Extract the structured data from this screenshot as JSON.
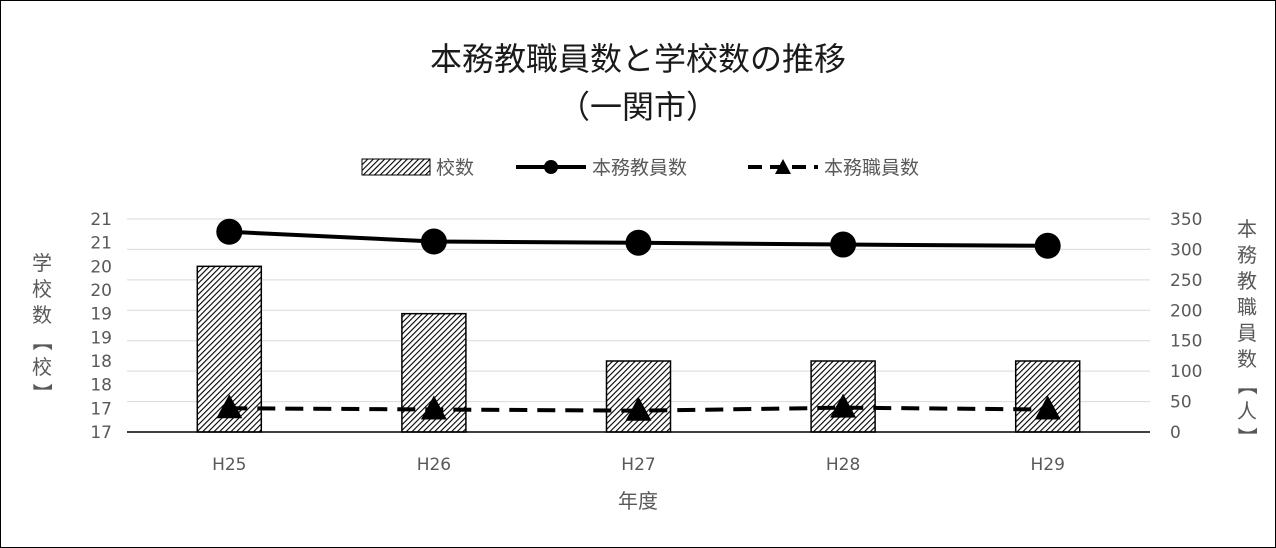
{
  "chart_data": {
    "type": "bar",
    "title": "本務教職員数と学校数の推移",
    "subtitle": "（一関市）",
    "categories": [
      "H25",
      "H26",
      "H27",
      "H28",
      "H29"
    ],
    "xlabel": "年度",
    "ylabel_left": "学校数【校】",
    "ylabel_right": "本務教職員数【人】",
    "left_axis": {
      "min": 16.5,
      "max": 21.0,
      "tick_values": [
        16.5,
        17,
        17.5,
        18,
        18.5,
        19,
        19.5,
        20,
        20.5,
        21
      ],
      "tick_labels": [
        "17",
        "17",
        "18",
        "18",
        "19",
        "19",
        "20",
        "20",
        "21",
        "21"
      ]
    },
    "right_axis": {
      "min": 0,
      "max": 350,
      "ticks": [
        0,
        50,
        100,
        150,
        200,
        250,
        300,
        350
      ]
    },
    "grid": true,
    "legend_position": "top",
    "series": [
      {
        "name": "校数",
        "type": "bar",
        "axis": "left",
        "values": [
          20,
          19,
          18,
          18,
          18
        ],
        "pattern": "diagonal-hatch"
      },
      {
        "name": "本務教員数",
        "type": "line",
        "axis": "right",
        "values": [
          329,
          313,
          311,
          308,
          306
        ],
        "line_style": "solid",
        "marker": "circle",
        "color": "#000000"
      },
      {
        "name": "本務職員数",
        "type": "line",
        "axis": "right",
        "values": [
          39,
          37,
          35,
          40,
          37
        ],
        "line_style": "dashed",
        "marker": "triangle",
        "color": "#000000"
      }
    ]
  }
}
